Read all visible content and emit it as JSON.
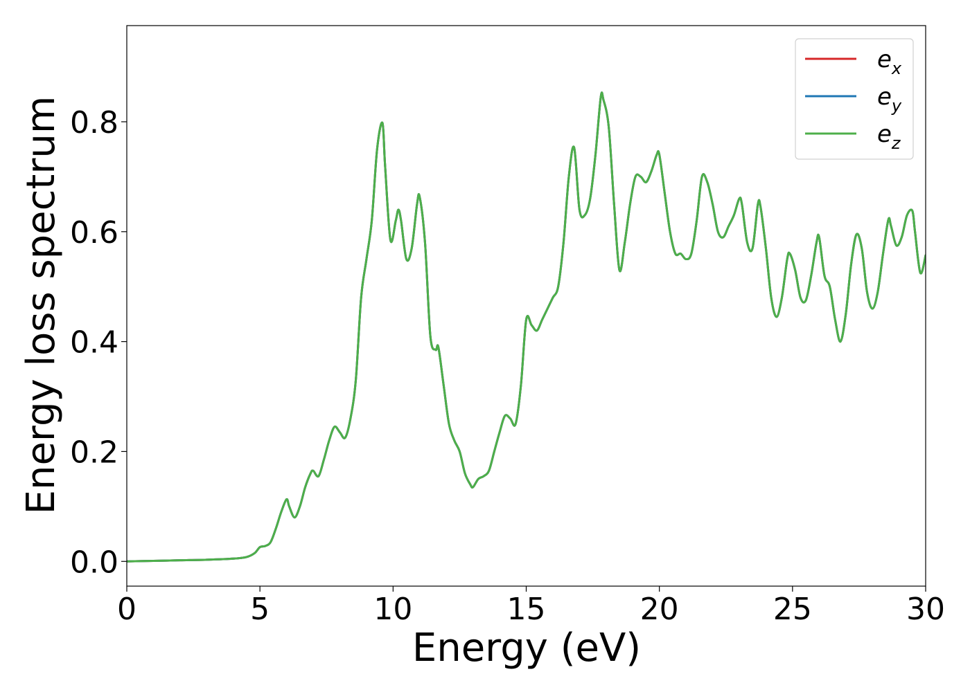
{
  "chart_data": {
    "type": "line",
    "title": "",
    "xlabel": "Energy (eV)",
    "ylabel": "Energy loss spectrum",
    "xlim": [
      0,
      30
    ],
    "ylim": [
      -0.045,
      0.975
    ],
    "grid": false,
    "legend_position": "top-right",
    "xticks": [
      0,
      5,
      10,
      15,
      20,
      25,
      30
    ],
    "xtick_labels": [
      "0",
      "5",
      "10",
      "15",
      "20",
      "25",
      "30"
    ],
    "yticks": [
      0.0,
      0.2,
      0.4,
      0.6,
      0.8
    ],
    "ytick_labels": [
      "0.0",
      "0.2",
      "0.4",
      "0.6",
      "0.8"
    ],
    "series": [
      {
        "name": "e_x",
        "legend_base": "e",
        "legend_sub": "x",
        "color": "#d62728"
      },
      {
        "name": "e_y",
        "legend_base": "e",
        "legend_sub": "y",
        "color": "#1f77b4"
      },
      {
        "name": "e_z",
        "legend_base": "e",
        "legend_sub": "z",
        "color": "#4daf4a"
      }
    ],
    "x": [
      0,
      1,
      2,
      3,
      4,
      4.5,
      4.8,
      5.0,
      5.2,
      5.4,
      5.6,
      5.8,
      6.0,
      6.1,
      6.3,
      6.5,
      6.7,
      6.9,
      7.0,
      7.2,
      7.4,
      7.6,
      7.8,
      8.0,
      8.2,
      8.4,
      8.6,
      8.8,
      9.0,
      9.2,
      9.4,
      9.6,
      9.7,
      9.9,
      10.1,
      10.2,
      10.3,
      10.5,
      10.7,
      10.9,
      11.0,
      11.2,
      11.4,
      11.6,
      11.7,
      11.9,
      12.1,
      12.3,
      12.5,
      12.7,
      12.9,
      13.0,
      13.2,
      13.4,
      13.6,
      13.8,
      14.0,
      14.2,
      14.4,
      14.6,
      14.8,
      15.0,
      15.2,
      15.4,
      15.6,
      15.8,
      16.0,
      16.2,
      16.4,
      16.6,
      16.8,
      17.0,
      17.2,
      17.4,
      17.6,
      17.8,
      17.9,
      18.1,
      18.3,
      18.5,
      18.7,
      18.9,
      19.1,
      19.3,
      19.5,
      19.7,
      19.9,
      20.0,
      20.2,
      20.4,
      20.6,
      20.8,
      21.0,
      21.2,
      21.4,
      21.6,
      21.8,
      22.0,
      22.2,
      22.4,
      22.6,
      22.8,
      23.0,
      23.1,
      23.3,
      23.5,
      23.7,
      23.8,
      24.0,
      24.2,
      24.4,
      24.6,
      24.8,
      24.9,
      25.1,
      25.3,
      25.5,
      25.7,
      25.9,
      26.0,
      26.2,
      26.4,
      26.6,
      26.8,
      27.0,
      27.2,
      27.4,
      27.6,
      27.8,
      28.0,
      28.2,
      28.4,
      28.6,
      28.7,
      28.9,
      29.1,
      29.3,
      29.5,
      29.6,
      29.8,
      30.0
    ],
    "y": [
      0.0,
      0.001,
      0.002,
      0.003,
      0.005,
      0.008,
      0.015,
      0.026,
      0.028,
      0.035,
      0.06,
      0.09,
      0.113,
      0.1,
      0.08,
      0.1,
      0.135,
      0.16,
      0.165,
      0.155,
      0.185,
      0.22,
      0.245,
      0.235,
      0.225,
      0.26,
      0.33,
      0.48,
      0.55,
      0.62,
      0.75,
      0.798,
      0.72,
      0.585,
      0.62,
      0.64,
      0.62,
      0.55,
      0.57,
      0.65,
      0.663,
      0.58,
      0.41,
      0.385,
      0.39,
      0.32,
      0.25,
      0.22,
      0.2,
      0.16,
      0.14,
      0.135,
      0.15,
      0.155,
      0.165,
      0.2,
      0.235,
      0.265,
      0.26,
      0.25,
      0.32,
      0.44,
      0.43,
      0.42,
      0.44,
      0.46,
      0.48,
      0.5,
      0.58,
      0.7,
      0.753,
      0.64,
      0.63,
      0.66,
      0.74,
      0.845,
      0.84,
      0.79,
      0.65,
      0.53,
      0.58,
      0.65,
      0.7,
      0.7,
      0.69,
      0.71,
      0.74,
      0.74,
      0.67,
      0.6,
      0.56,
      0.56,
      0.55,
      0.56,
      0.62,
      0.7,
      0.69,
      0.65,
      0.6,
      0.59,
      0.61,
      0.63,
      0.66,
      0.65,
      0.58,
      0.57,
      0.65,
      0.645,
      0.57,
      0.48,
      0.445,
      0.48,
      0.55,
      0.56,
      0.53,
      0.48,
      0.475,
      0.52,
      0.58,
      0.59,
      0.52,
      0.5,
      0.44,
      0.4,
      0.45,
      0.54,
      0.595,
      0.57,
      0.49,
      0.46,
      0.49,
      0.56,
      0.622,
      0.61,
      0.575,
      0.59,
      0.63,
      0.638,
      0.6,
      0.525,
      0.557
    ]
  }
}
